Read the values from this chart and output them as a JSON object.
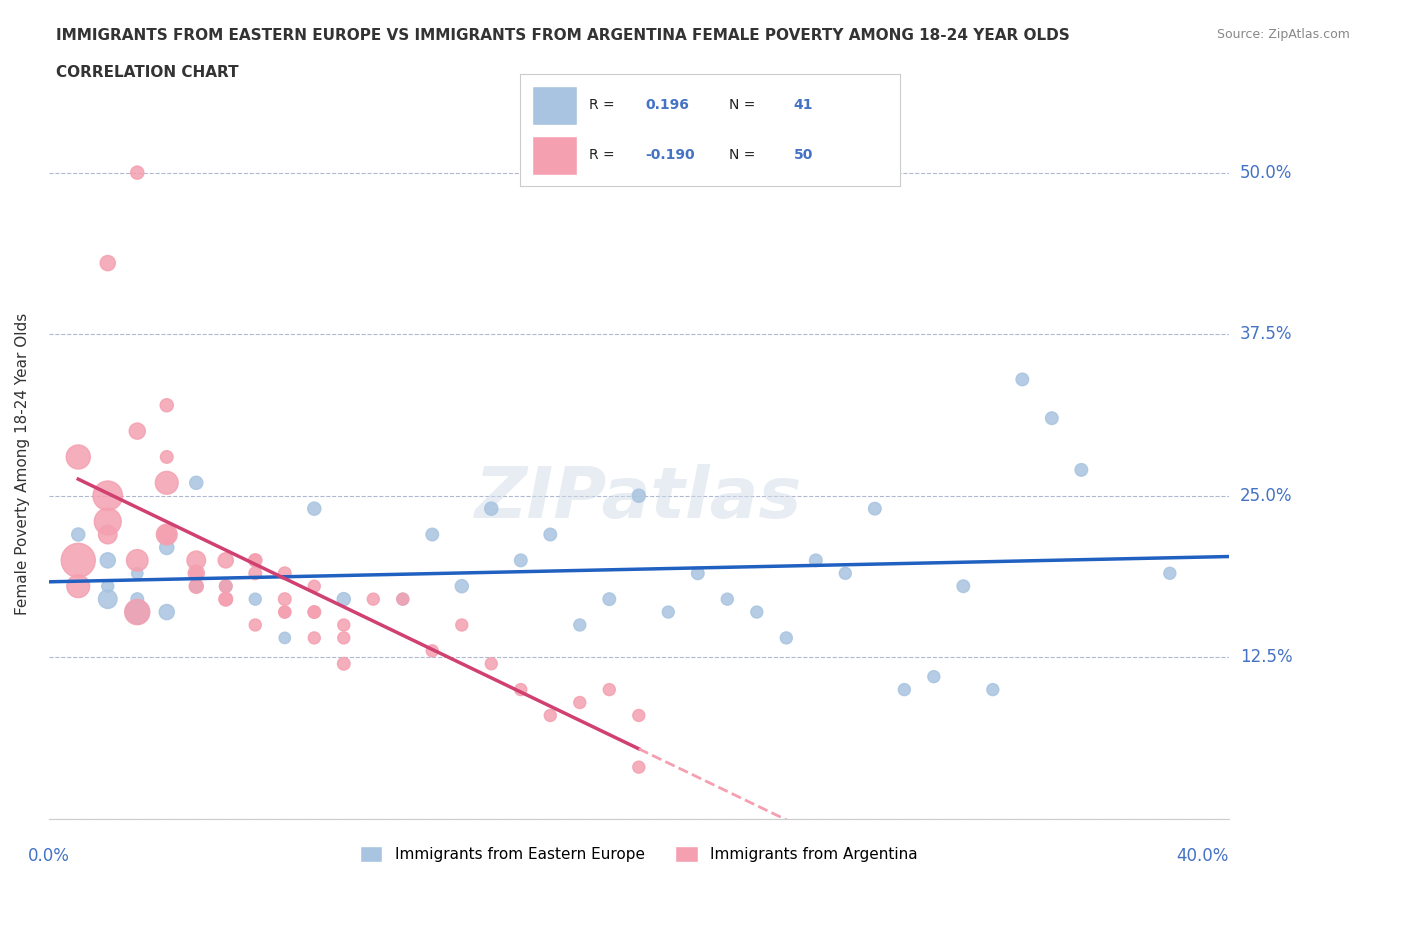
{
  "title_line1": "IMMIGRANTS FROM EASTERN EUROPE VS IMMIGRANTS FROM ARGENTINA FEMALE POVERTY AMONG 18-24 YEAR OLDS",
  "title_line2": "CORRELATION CHART",
  "source": "Source: ZipAtlas.com",
  "ylabel": "Female Poverty Among 18-24 Year Olds",
  "xlim": [
    0.0,
    0.4
  ],
  "ylim": [
    0.0,
    0.55
  ],
  "yticks": [
    0.0,
    0.125,
    0.25,
    0.375,
    0.5
  ],
  "ytick_labels": [
    "",
    "12.5%",
    "25.0%",
    "37.5%",
    "50.0%"
  ],
  "xticks": [
    0.0,
    0.1,
    0.2,
    0.3,
    0.4
  ],
  "color_eastern": "#a8c4e0",
  "color_argentina": "#f4a0b0",
  "line_color_eastern": "#2060c0",
  "line_color_argentina": "#d04070",
  "R_eastern": 0.196,
  "N_eastern": 41,
  "R_argentina": -0.19,
  "N_argentina": 50,
  "watermark": "ZIPatlas",
  "eastern_europe_x": [
    0.02,
    0.01,
    0.02,
    0.03,
    0.02,
    0.03,
    0.04,
    0.05,
    0.03,
    0.04,
    0.05,
    0.06,
    0.07,
    0.08,
    0.09,
    0.1,
    0.12,
    0.13,
    0.14,
    0.15,
    0.16,
    0.17,
    0.18,
    0.19,
    0.2,
    0.21,
    0.22,
    0.23,
    0.24,
    0.25,
    0.26,
    0.27,
    0.28,
    0.29,
    0.3,
    0.31,
    0.32,
    0.33,
    0.34,
    0.38,
    0.35
  ],
  "eastern_europe_y": [
    0.2,
    0.22,
    0.18,
    0.19,
    0.17,
    0.16,
    0.21,
    0.18,
    0.17,
    0.16,
    0.26,
    0.18,
    0.17,
    0.14,
    0.24,
    0.17,
    0.17,
    0.22,
    0.18,
    0.24,
    0.2,
    0.22,
    0.15,
    0.17,
    0.25,
    0.16,
    0.19,
    0.17,
    0.16,
    0.14,
    0.2,
    0.19,
    0.24,
    0.1,
    0.11,
    0.18,
    0.1,
    0.34,
    0.31,
    0.19,
    0.27
  ],
  "eastern_europe_size": [
    80,
    60,
    50,
    45,
    120,
    200,
    70,
    60,
    55,
    80,
    60,
    55,
    50,
    45,
    60,
    60,
    50,
    55,
    60,
    60,
    55,
    55,
    50,
    55,
    60,
    50,
    55,
    50,
    50,
    50,
    55,
    50,
    55,
    50,
    50,
    55,
    50,
    55,
    55,
    50,
    55
  ],
  "argentina_x": [
    0.01,
    0.02,
    0.01,
    0.02,
    0.03,
    0.02,
    0.01,
    0.02,
    0.03,
    0.04,
    0.03,
    0.04,
    0.05,
    0.04,
    0.05,
    0.06,
    0.05,
    0.06,
    0.07,
    0.06,
    0.07,
    0.08,
    0.07,
    0.08,
    0.09,
    0.08,
    0.09,
    0.1,
    0.09,
    0.1,
    0.11,
    0.12,
    0.13,
    0.14,
    0.15,
    0.16,
    0.17,
    0.18,
    0.19,
    0.2,
    0.03,
    0.04,
    0.04,
    0.05,
    0.06,
    0.07,
    0.08,
    0.09,
    0.1,
    0.2
  ],
  "argentina_y": [
    0.2,
    0.43,
    0.18,
    0.22,
    0.3,
    0.25,
    0.28,
    0.23,
    0.16,
    0.26,
    0.2,
    0.22,
    0.2,
    0.22,
    0.19,
    0.2,
    0.18,
    0.17,
    0.2,
    0.17,
    0.19,
    0.17,
    0.15,
    0.16,
    0.18,
    0.16,
    0.14,
    0.15,
    0.16,
    0.14,
    0.17,
    0.17,
    0.13,
    0.15,
    0.12,
    0.1,
    0.08,
    0.09,
    0.1,
    0.08,
    0.5,
    0.32,
    0.28,
    0.19,
    0.18,
    0.2,
    0.19,
    0.16,
    0.12,
    0.04
  ],
  "argentina_size": [
    400,
    80,
    180,
    120,
    90,
    300,
    200,
    250,
    220,
    180,
    160,
    150,
    120,
    110,
    90,
    80,
    70,
    65,
    60,
    60,
    55,
    55,
    50,
    50,
    50,
    50,
    50,
    50,
    50,
    50,
    50,
    50,
    50,
    50,
    50,
    50,
    50,
    50,
    50,
    50,
    60,
    60,
    55,
    55,
    55,
    55,
    55,
    55,
    55,
    50
  ]
}
